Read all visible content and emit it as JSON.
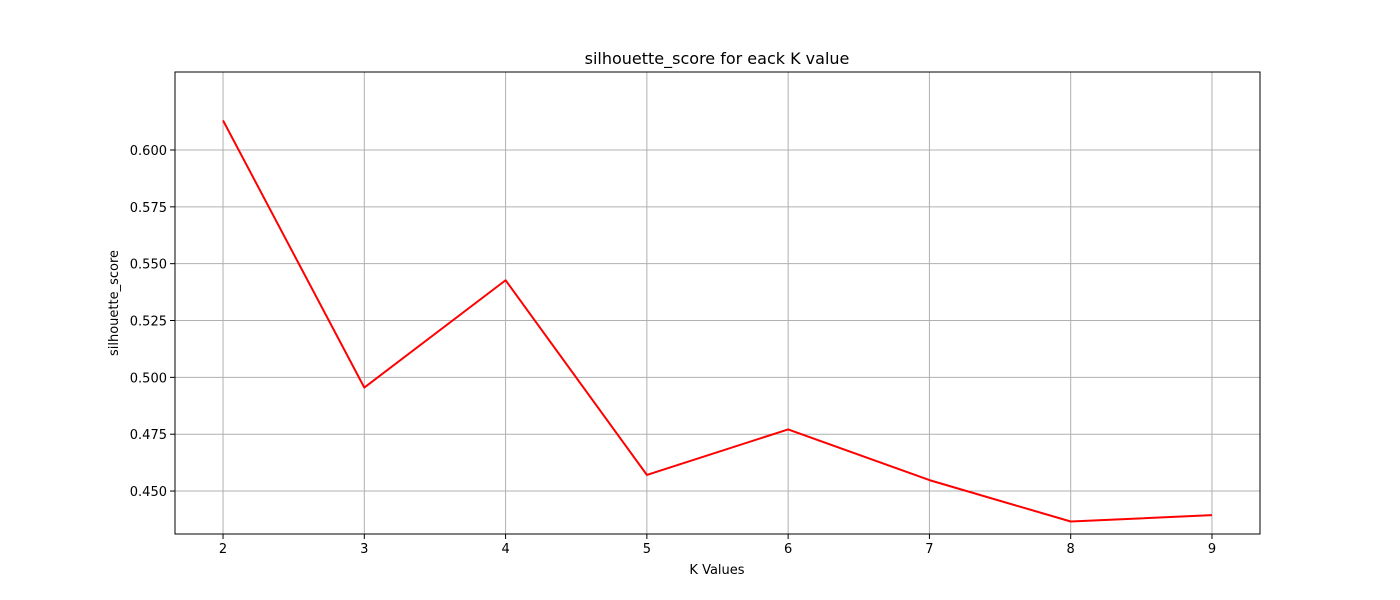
{
  "chart_data": {
    "type": "line",
    "title": "silhouette_score for eack K value",
    "xlabel": "K Values",
    "ylabel": "silhouette_score",
    "x": [
      2,
      3,
      4,
      5,
      6,
      7,
      8,
      9
    ],
    "series": [
      {
        "values": [
          0.613,
          0.4955,
          0.5427,
          0.4571,
          0.4771,
          0.4548,
          0.4366,
          0.4394
        ],
        "color": "#ff0000"
      }
    ],
    "xlim": [
      1.66,
      9.34
    ],
    "ylim": [
      0.4311,
      0.6343
    ],
    "xticks": [
      2,
      3,
      4,
      5,
      6,
      7,
      8,
      9
    ],
    "xtick_labels": [
      "2",
      "3",
      "4",
      "5",
      "6",
      "7",
      "8",
      "9"
    ],
    "yticks": [
      0.45,
      0.475,
      0.5,
      0.525,
      0.55,
      0.575,
      0.6
    ],
    "ytick_labels": [
      "0.450",
      "0.475",
      "0.500",
      "0.525",
      "0.550",
      "0.575",
      "0.600"
    ],
    "grid": true,
    "legend": false
  }
}
